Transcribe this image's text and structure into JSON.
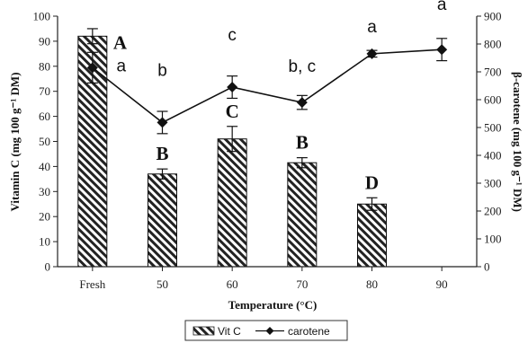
{
  "chart_data": {
    "type": "bar",
    "categories": [
      "Fresh",
      "50",
      "60",
      "70",
      "80",
      "90"
    ],
    "xlabel": "Temperature (°C)",
    "ylabel_left": "Vitamin C (mg 100 g⁻¹ DM)",
    "ylabel_right": "β-carotene (mg 100 g⁻¹ DM)",
    "ylim_left": [
      0,
      100
    ],
    "ylim_right": [
      0,
      900
    ],
    "yticks_left": [
      "0",
      "10",
      "20",
      "30",
      "40",
      "50",
      "60",
      "70",
      "80",
      "90",
      "100"
    ],
    "yticks_right": [
      "0",
      "100",
      "200",
      "300",
      "400",
      "500",
      "600",
      "700",
      "800",
      "900"
    ],
    "series": [
      {
        "name": "Vit C",
        "type": "bar",
        "axis": "left",
        "values": [
          92,
          37,
          51,
          41.5,
          25,
          null
        ],
        "errors": [
          3,
          2,
          5,
          2,
          2.5,
          null
        ],
        "letters": [
          "A",
          "B",
          "C",
          "B",
          "D",
          ""
        ]
      },
      {
        "name": "carotene",
        "type": "line",
        "axis": "right",
        "values": [
          715,
          518,
          645,
          590,
          765,
          780
        ],
        "errors": [
          55,
          40,
          40,
          25,
          12,
          40
        ],
        "letters": [
          "a",
          "b",
          "c",
          "b, c",
          "a",
          "a"
        ]
      }
    ],
    "legend": {
      "position": "bottom-center",
      "items": [
        "Vit C",
        "carotene"
      ]
    },
    "grid": false
  }
}
